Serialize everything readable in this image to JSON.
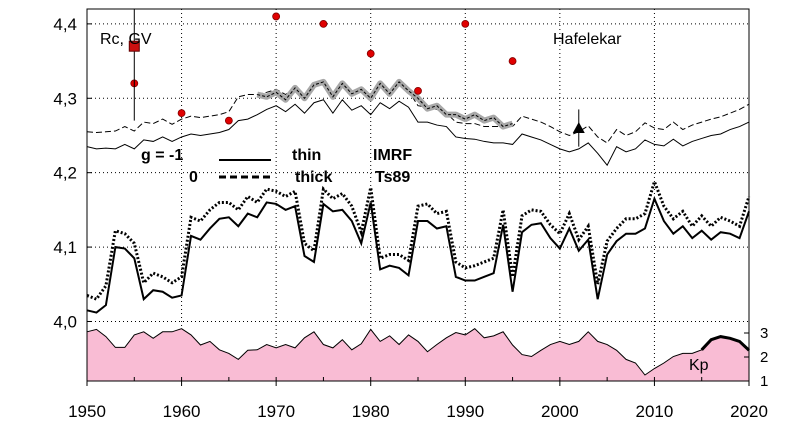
{
  "chart_data": {
    "type": "line",
    "xlim": [
      1950,
      2020
    ],
    "ylim": [
      3.92,
      4.42
    ],
    "grid": true,
    "x_ticks": [
      1950,
      1960,
      1970,
      1980,
      1990,
      2000,
      2010,
      2020
    ],
    "y_ticks": [
      4.0,
      4.1,
      4.2,
      4.3,
      4.4
    ],
    "y_tick_labels": [
      "4,0",
      "4,1",
      "4,2",
      "4,3",
      "4,4"
    ],
    "kp_axis": {
      "ticks": [
        1,
        2,
        3
      ],
      "labels": [
        "1",
        "2",
        "3"
      ],
      "range": [
        1,
        3
      ]
    },
    "annotations": {
      "rc_gv": "Rc, GV",
      "station": "Hafelekar",
      "kp": "Kp",
      "legend": {
        "row1": {
          "g": "g  = -1",
          "style": "thin",
          "model": "IMRF"
        },
        "row2": {
          "g": "0",
          "style": "thick",
          "model": "Ts89"
        }
      }
    },
    "series": [
      {
        "style": "solid-thin-upper",
        "x": [
          1950,
          1951,
          1952,
          1953,
          1954,
          1955,
          1956,
          1957,
          1958,
          1959,
          1960,
          1961,
          1962,
          1963,
          1964,
          1965,
          1966,
          1967,
          1968,
          1969,
          1970,
          1971,
          1972,
          1973,
          1974,
          1975,
          1976,
          1977,
          1978,
          1979,
          1980,
          1981,
          1982,
          1983,
          1984,
          1985,
          1986,
          1987,
          1988,
          1989,
          1990,
          1991,
          1992,
          1993,
          1994,
          1995,
          1996,
          1997,
          1998,
          1999,
          2000,
          2001,
          2002,
          2003,
          2004,
          2005,
          2006,
          2007,
          2008,
          2009,
          2010,
          2011,
          2012,
          2013,
          2014,
          2015,
          2016,
          2017,
          2018,
          2019,
          2020
        ],
        "y": [
          4.235,
          4.232,
          4.233,
          4.232,
          4.238,
          4.232,
          4.244,
          4.242,
          4.248,
          4.242,
          4.248,
          4.252,
          4.25,
          4.252,
          4.254,
          4.258,
          4.27,
          4.272,
          4.278,
          4.285,
          4.29,
          4.282,
          4.292,
          4.28,
          4.294,
          4.298,
          4.28,
          4.298,
          4.284,
          4.29,
          4.278,
          4.294,
          4.286,
          4.296,
          4.288,
          4.268,
          4.268,
          4.264,
          4.262,
          4.248,
          4.246,
          4.245,
          4.242,
          4.24,
          4.24,
          4.238,
          4.252,
          4.248,
          4.244,
          4.238,
          4.232,
          4.228,
          4.232,
          4.24,
          4.226,
          4.21,
          4.235,
          4.228,
          4.232,
          4.244,
          4.238,
          4.236,
          4.245,
          4.236,
          4.242,
          4.246,
          4.25,
          4.252,
          4.258,
          4.262,
          4.268
        ]
      },
      {
        "style": "dashed-upper",
        "x": [
          1950,
          1951,
          1952,
          1953,
          1954,
          1955,
          1956,
          1957,
          1958,
          1959,
          1960,
          1961,
          1962,
          1963,
          1964,
          1965,
          1966,
          1967,
          1968,
          1969,
          1970,
          1971,
          1972,
          1973,
          1974,
          1975,
          1976,
          1977,
          1978,
          1979,
          1980,
          1981,
          1982,
          1983,
          1984,
          1985,
          1986,
          1987,
          1988,
          1989,
          1990,
          1991,
          1992,
          1993,
          1994,
          1995,
          1996,
          1997,
          1998,
          1999,
          2000,
          2001,
          2002,
          2003,
          2004,
          2005,
          2006,
          2007,
          2008,
          2009,
          2010,
          2011,
          2012,
          2013,
          2014,
          2015,
          2016,
          2017,
          2018,
          2019,
          2020
        ],
        "y": [
          4.255,
          4.254,
          4.255,
          4.256,
          4.262,
          4.256,
          4.268,
          4.266,
          4.272,
          4.265,
          4.272,
          4.276,
          4.274,
          4.276,
          4.278,
          4.282,
          4.302,
          4.305,
          4.305,
          4.308,
          4.312,
          4.305,
          4.314,
          4.302,
          4.316,
          4.32,
          4.302,
          4.32,
          4.306,
          4.313,
          4.3,
          4.316,
          4.308,
          4.318,
          4.31,
          4.29,
          4.288,
          4.285,
          4.28,
          4.268,
          4.266,
          4.266,
          4.262,
          4.262,
          4.262,
          4.262,
          4.276,
          4.272,
          4.268,
          4.262,
          4.255,
          4.25,
          4.255,
          4.263,
          4.248,
          4.24,
          4.258,
          4.25,
          4.255,
          4.267,
          4.26,
          4.258,
          4.268,
          4.258,
          4.264,
          4.268,
          4.272,
          4.275,
          4.28,
          4.285,
          4.292
        ]
      },
      {
        "style": "grey-thick",
        "x": [
          1968,
          1969,
          1970,
          1971,
          1972,
          1973,
          1974,
          1975,
          1976,
          1977,
          1978,
          1979,
          1980,
          1981,
          1982,
          1983,
          1984,
          1985,
          1986,
          1987,
          1988,
          1989,
          1990,
          1991,
          1992,
          1993,
          1994,
          1995
        ],
        "y": [
          4.305,
          4.302,
          4.308,
          4.298,
          4.314,
          4.3,
          4.318,
          4.322,
          4.302,
          4.32,
          4.306,
          4.312,
          4.3,
          4.32,
          4.306,
          4.322,
          4.31,
          4.3,
          4.286,
          4.29,
          4.278,
          4.278,
          4.272,
          4.278,
          4.27,
          4.274,
          4.262,
          4.266
        ]
      },
      {
        "style": "solid-thick-lower",
        "x": [
          1950,
          1951,
          1952,
          1953,
          1954,
          1955,
          1956,
          1957,
          1958,
          1959,
          1960,
          1961,
          1962,
          1963,
          1964,
          1965,
          1966,
          1967,
          1968,
          1969,
          1970,
          1971,
          1972,
          1973,
          1974,
          1975,
          1976,
          1977,
          1978,
          1979,
          1980,
          1981,
          1982,
          1983,
          1984,
          1985,
          1986,
          1987,
          1988,
          1989,
          1990,
          1991,
          1992,
          1993,
          1994,
          1995,
          1996,
          1997,
          1998,
          1999,
          2000,
          2001,
          2002,
          2003,
          2004,
          2005,
          2006,
          2007,
          2008,
          2009,
          2010,
          2011,
          2012,
          2013,
          2014,
          2015,
          2016,
          2017,
          2018,
          2019,
          2020
        ],
        "y": [
          4.015,
          4.012,
          4.022,
          4.1,
          4.098,
          4.085,
          4.03,
          4.042,
          4.04,
          4.032,
          4.035,
          4.115,
          4.11,
          4.125,
          4.138,
          4.14,
          4.128,
          4.145,
          4.14,
          4.16,
          4.158,
          4.15,
          4.155,
          4.088,
          4.08,
          4.158,
          4.148,
          4.15,
          4.135,
          4.105,
          4.16,
          4.07,
          4.075,
          4.072,
          4.062,
          4.135,
          4.135,
          4.125,
          4.128,
          4.06,
          4.055,
          4.055,
          4.06,
          4.065,
          4.13,
          4.04,
          4.12,
          4.13,
          4.132,
          4.112,
          4.098,
          4.125,
          4.095,
          4.11,
          4.03,
          4.09,
          4.108,
          4.118,
          4.118,
          4.125,
          4.165,
          4.135,
          4.118,
          4.128,
          4.112,
          4.122,
          4.11,
          4.12,
          4.118,
          4.112,
          4.148
        ]
      },
      {
        "style": "dotted-lower",
        "x": [
          1950,
          1951,
          1952,
          1953,
          1954,
          1955,
          1956,
          1957,
          1958,
          1959,
          1960,
          1961,
          1962,
          1963,
          1964,
          1965,
          1966,
          1967,
          1968,
          1969,
          1970,
          1971,
          1972,
          1973,
          1974,
          1975,
          1976,
          1977,
          1978,
          1979,
          1980,
          1981,
          1982,
          1983,
          1984,
          1985,
          1986,
          1987,
          1988,
          1989,
          1990,
          1991,
          1992,
          1993,
          1994,
          1995,
          1996,
          1997,
          1998,
          1999,
          2000,
          2001,
          2002,
          2003,
          2004,
          2005,
          2006,
          2007,
          2008,
          2009,
          2010,
          2011,
          2012,
          2013,
          2014,
          2015,
          2016,
          2017,
          2018,
          2019,
          2020
        ],
        "y": [
          4.035,
          4.03,
          4.048,
          4.122,
          4.118,
          4.105,
          4.052,
          4.065,
          4.06,
          4.052,
          4.06,
          4.14,
          4.135,
          4.15,
          4.16,
          4.16,
          4.15,
          4.168,
          4.16,
          4.178,
          4.175,
          4.168,
          4.175,
          4.105,
          4.095,
          4.178,
          4.165,
          4.172,
          4.155,
          4.12,
          4.18,
          4.085,
          4.09,
          4.09,
          4.082,
          4.155,
          4.158,
          4.145,
          4.148,
          4.08,
          4.072,
          4.075,
          4.08,
          4.085,
          4.15,
          4.06,
          4.142,
          4.15,
          4.148,
          4.13,
          4.118,
          4.145,
          4.11,
          4.128,
          4.05,
          4.108,
          4.125,
          4.138,
          4.138,
          4.145,
          4.188,
          4.155,
          4.138,
          4.148,
          4.128,
          4.142,
          4.128,
          4.14,
          4.135,
          4.128,
          4.168
        ]
      }
    ],
    "points": {
      "red_circles": [
        {
          "x": 1955,
          "y": 4.32
        },
        {
          "x": 1960,
          "y": 4.28
        },
        {
          "x": 1965,
          "y": 4.27
        },
        {
          "x": 1970,
          "y": 4.41
        },
        {
          "x": 1975,
          "y": 4.4
        },
        {
          "x": 1980,
          "y": 4.36
        },
        {
          "x": 1985,
          "y": 4.31
        },
        {
          "x": 1990,
          "y": 4.4
        },
        {
          "x": 1995,
          "y": 4.35
        }
      ],
      "red_square": {
        "x": 1955,
        "y": 4.37,
        "ylow": 4.27,
        "yhigh": 4.42
      },
      "black_triangle": {
        "x": 2002,
        "y": 4.26,
        "ylow": 4.235,
        "yhigh": 4.285
      }
    },
    "kp_series": {
      "x": [
        1950,
        1951,
        1952,
        1953,
        1954,
        1955,
        1956,
        1957,
        1958,
        1959,
        1960,
        1961,
        1962,
        1963,
        1964,
        1965,
        1966,
        1967,
        1968,
        1969,
        1970,
        1971,
        1972,
        1973,
        1974,
        1975,
        1976,
        1977,
        1978,
        1979,
        1980,
        1981,
        1982,
        1983,
        1984,
        1985,
        1986,
        1987,
        1988,
        1989,
        1990,
        1991,
        1992,
        1993,
        1994,
        1995,
        1996,
        1997,
        1998,
        1999,
        2000,
        2001,
        2002,
        2003,
        2004,
        2005,
        2006,
        2007,
        2008,
        2009,
        2010,
        2011,
        2012,
        2013,
        2014,
        2015,
        2016,
        2017,
        2018,
        2019,
        2020
      ],
      "y": [
        3.05,
        3.15,
        2.85,
        2.4,
        2.4,
        2.92,
        3.05,
        2.78,
        3.05,
        3.05,
        3.18,
        2.92,
        2.5,
        2.65,
        2.3,
        2.15,
        1.9,
        2.28,
        2.3,
        2.52,
        2.38,
        2.52,
        2.38,
        2.8,
        3.05,
        2.52,
        2.38,
        2.72,
        2.3,
        2.55,
        3.15,
        2.65,
        2.88,
        2.52,
        2.92,
        2.65,
        2.22,
        2.52,
        2.8,
        3.02,
        2.92,
        3.18,
        2.8,
        2.88,
        3.05,
        2.5,
        2.1,
        2.02,
        2.28,
        2.52,
        2.65,
        2.52,
        2.65,
        3.05,
        2.65,
        2.52,
        2.28,
        1.9,
        1.75,
        1.25,
        1.52,
        1.75,
        2.02,
        2.15,
        2.15,
        2.3,
        2.72,
        2.85,
        2.78,
        2.65,
        2.28
      ]
    }
  }
}
